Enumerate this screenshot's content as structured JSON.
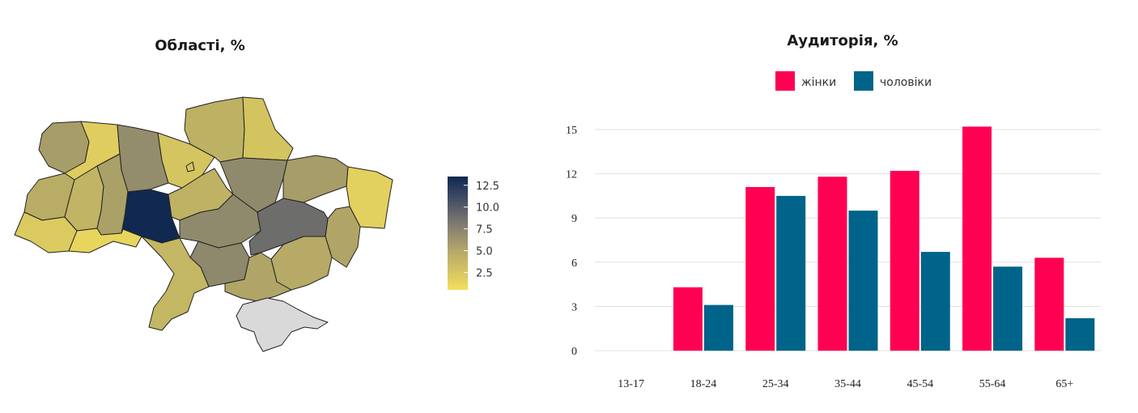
{
  "colors": {
    "women": "#ff0052",
    "men": "#006389",
    "scale_low": "#f3df5b",
    "scale_mid": "#7a7770",
    "scale_high": "#0f2850",
    "no_data": "#d9d9d9",
    "grid": "#e0e0e0"
  },
  "map": {
    "title": "Області, %",
    "colorbar": {
      "ticks": [
        "12.5",
        "10.0",
        "7.5",
        "5.0",
        "2.5"
      ],
      "min": 0.5,
      "max": 13.5
    },
    "regions": [
      {
        "name": "",
        "value": 4.6
      },
      {
        "name": "",
        "value": 1.6
      },
      {
        "name": "",
        "value": 5.6
      },
      {
        "name": "",
        "value": 2.1
      },
      {
        "name": "",
        "value": 3.4
      },
      {
        "name": "",
        "value": 2.2
      },
      {
        "name": "",
        "value": 1.4
      },
      {
        "name": "",
        "value": 3.6
      },
      {
        "name": "",
        "value": 5.8
      },
      {
        "name": "",
        "value": 1.8
      },
      {
        "name": "",
        "value": 4.6
      },
      {
        "name": "",
        "value": 3.2
      },
      {
        "name": "",
        "value": 4.4
      },
      {
        "name": "",
        "value": 13.4
      },
      {
        "name": "",
        "value": 3.3
      },
      {
        "name": "",
        "value": 5.8
      },
      {
        "name": "",
        "value": 4.1
      },
      {
        "name": "",
        "value": 5.9
      },
      {
        "name": "",
        "value": 7.8
      },
      {
        "name": "",
        "value": 1.1
      },
      {
        "name": "",
        "value": 3.8
      },
      {
        "name": "",
        "value": 3.0
      },
      {
        "name": "",
        "value": 4.1
      },
      {
        "name": "",
        "value": 2.1
      },
      {
        "name": "",
        "value": null
      }
    ]
  },
  "chart_data": {
    "type": "bar",
    "title": "Аудиторія, %",
    "legend": "top-center",
    "grid": true,
    "categories": [
      "13-17",
      "18-24",
      "25-34",
      "35-44",
      "45-54",
      "55-64",
      "65+"
    ],
    "series": [
      {
        "name": "жінки",
        "values": [
          0,
          4.3,
          11.1,
          11.8,
          12.2,
          15.2,
          6.3
        ]
      },
      {
        "name": "чоловіки",
        "values": [
          0,
          3.1,
          10.5,
          9.5,
          6.7,
          5.7,
          2.2
        ]
      }
    ],
    "yticks": [
      "0",
      "3",
      "6",
      "9",
      "12",
      "15"
    ],
    "ylim": [
      0,
      15.8
    ]
  }
}
